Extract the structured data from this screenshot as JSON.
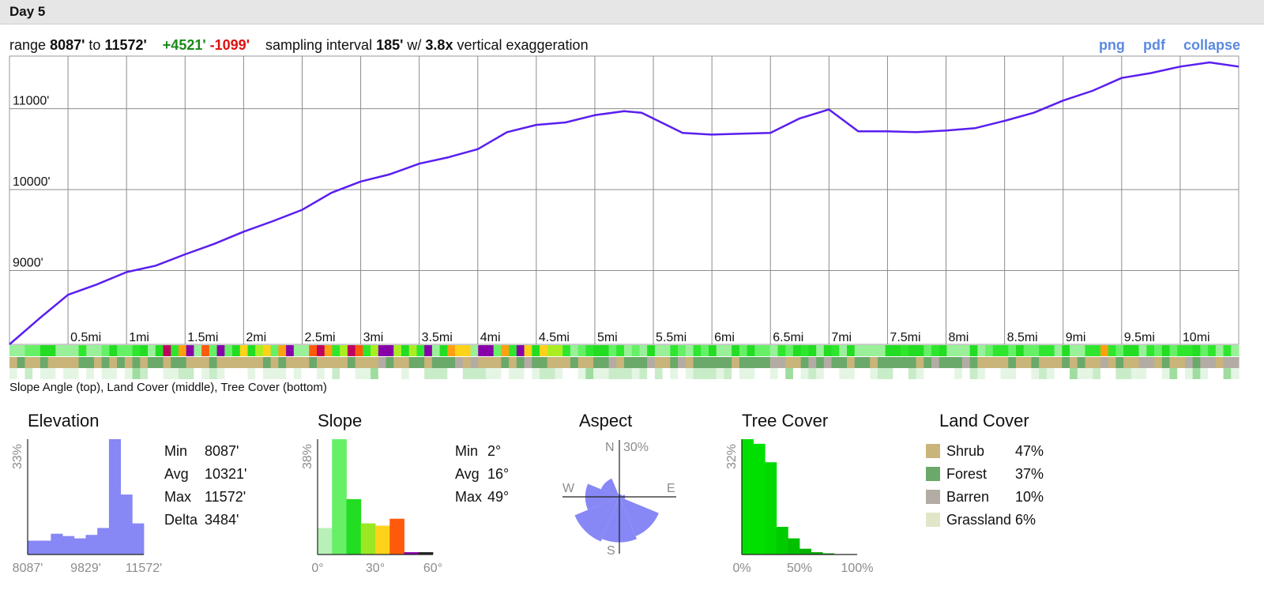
{
  "header": {
    "title": "Day 5"
  },
  "summary": {
    "range_label": "range",
    "min": "8087'",
    "to_label": "to",
    "max": "11572'",
    "gain": "+4521'",
    "loss": "-1099'",
    "interval_label": "sampling interval",
    "interval": "185'",
    "w_label": "w/",
    "exaggeration": "3.8x",
    "exaggeration_label": "vertical exaggeration"
  },
  "links": {
    "png": "png",
    "pdf": "pdf",
    "collapse": "collapse"
  },
  "colors": {
    "profile_line": "#5a1ef0",
    "histogram": "#8787f5",
    "shrub": "#c9b47a",
    "forest": "#6aa96a",
    "barren": "#b3aca4",
    "grassland": "#e2e6c8"
  },
  "chart_data": [
    {
      "type": "line",
      "name": "elevation-profile",
      "x_unit": "mi",
      "y_ticks": [
        9000,
        10000,
        11000
      ],
      "y_tick_labels": [
        "9000'",
        "10000'",
        "11000'"
      ],
      "x_ticks": [
        0.5,
        1,
        1.5,
        2,
        2.5,
        3,
        3.5,
        4,
        4.5,
        5,
        5.5,
        6,
        6.5,
        7,
        7.5,
        8,
        8.5,
        9,
        9.5,
        10
      ],
      "x_tick_labels": [
        "0.5mi",
        "1mi",
        "1.5mi",
        "2mi",
        "2.5mi",
        "3mi",
        "3.5mi",
        "4mi",
        "4.5mi",
        "5mi",
        "5.5mi",
        "6mi",
        "6.5mi",
        "7mi",
        "7.5mi",
        "8mi",
        "8.5mi",
        "9mi",
        "9.5mi",
        "10mi"
      ],
      "xlim": [
        0,
        10.5
      ],
      "ylim": [
        8087,
        11650
      ],
      "x": [
        0,
        0.25,
        0.5,
        0.75,
        1,
        1.25,
        1.5,
        1.75,
        2,
        2.25,
        2.5,
        2.75,
        3,
        3.25,
        3.5,
        3.75,
        4,
        4.25,
        4.5,
        4.75,
        5,
        5.25,
        5.4,
        5.75,
        6,
        6.25,
        6.5,
        6.75,
        7,
        7.25,
        7.5,
        7.75,
        8,
        8.25,
        8.5,
        8.75,
        9,
        9.25,
        9.5,
        9.75,
        10,
        10.25,
        10.5
      ],
      "y": [
        8087,
        8400,
        8700,
        8830,
        8980,
        9060,
        9200,
        9330,
        9480,
        9610,
        9750,
        9960,
        10100,
        10190,
        10320,
        10400,
        10500,
        10710,
        10800,
        10830,
        10920,
        10970,
        10950,
        10700,
        10680,
        10690,
        10700,
        10880,
        10990,
        10720,
        10720,
        10710,
        10730,
        10760,
        10850,
        10950,
        11100,
        11220,
        11380,
        11440,
        11520,
        11572,
        11520
      ]
    },
    {
      "type": "bar",
      "name": "elevation-histogram",
      "title": "Elevation",
      "ylabel": "33%",
      "x_tick_labels": [
        "8087'",
        "9829'",
        "11572'"
      ],
      "values": [
        0.12,
        0.12,
        0.18,
        0.16,
        0.14,
        0.17,
        0.23,
        1.0,
        0.52,
        0.27
      ],
      "stats": [
        {
          "label": "Min",
          "value": "8087'"
        },
        {
          "label": "Avg",
          "value": "10321'"
        },
        {
          "label": "Max",
          "value": "11572'"
        },
        {
          "label": "Delta",
          "value": "3484'"
        }
      ]
    },
    {
      "type": "bar",
      "name": "slope-histogram",
      "title": "Slope",
      "ylabel": "38%",
      "x_tick_labels": [
        "0°",
        "30°",
        "60°"
      ],
      "values": [
        0.23,
        1.0,
        0.48,
        0.27,
        0.25,
        0.31,
        0.02,
        0.02
      ],
      "bar_colors": [
        "#b8f0b8",
        "#66f066",
        "#22dd22",
        "#99e822",
        "#ffd21a",
        "#ff5a0a",
        "#8800aa",
        "#222222"
      ],
      "stats": [
        {
          "label": "Min",
          "value": "2°"
        },
        {
          "label": "Avg",
          "value": "16°"
        },
        {
          "label": "Max",
          "value": "49°"
        }
      ]
    },
    {
      "type": "polar-bar",
      "name": "aspect-rose",
      "title": "Aspect",
      "radius_label": "30%",
      "directions": [
        "N",
        "E",
        "S",
        "W"
      ],
      "values_by_direction": {
        "N": 0.05,
        "NE": 0.05,
        "E": 0.1,
        "SE": 0.75,
        "S": 0.8,
        "SW": 0.85,
        "W": 0.6,
        "NW": 0.35
      }
    },
    {
      "type": "bar",
      "name": "tree-cover-histogram",
      "title": "Tree Cover",
      "ylabel": "32%",
      "x_tick_labels": [
        "0%",
        "50%",
        "100%"
      ],
      "values": [
        1.0,
        0.96,
        0.8,
        0.24,
        0.14,
        0.05,
        0.02,
        0.01,
        0,
        0
      ],
      "bar_colors": [
        "#00e000",
        "#00e000",
        "#00d800",
        "#00cc00",
        "#00c000",
        "#00b400",
        "#00a800",
        "#009c00",
        "#009000",
        "#008400"
      ]
    }
  ],
  "strips": {
    "caption": "Slope Angle (top), Land Cover (middle), Tree Cover (bottom)"
  },
  "land_cover": {
    "title": "Land Cover",
    "items": [
      {
        "label": "Shrub",
        "pct": "47%",
        "color": "#c9b47a"
      },
      {
        "label": "Forest",
        "pct": "37%",
        "color": "#6aa96a"
      },
      {
        "label": "Barren",
        "pct": "10%",
        "color": "#b3aca4"
      },
      {
        "label": "Grassland",
        "pct": "6%",
        "color": "#e2e6c8"
      }
    ]
  }
}
